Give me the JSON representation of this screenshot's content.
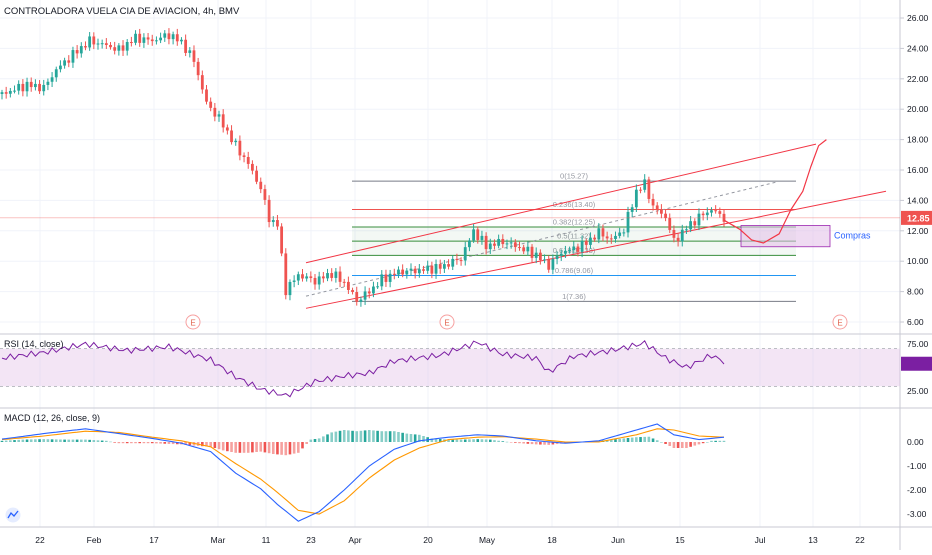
{
  "chart_data": {
    "type": "candlestick",
    "title": "CONTROLADORA VUELA CIA DE AVIACION, 4h, BMV",
    "colors": {
      "up": "#26a69a",
      "down": "#ef5350",
      "channel": "#f23645",
      "rsi_line": "#7b1fa2",
      "rsi_band": "#e1bee7",
      "macd_line": "#2962ff",
      "signal_line": "#ff9800",
      "fib_green": "#388e3c",
      "fib_blue": "#2196f3",
      "fib_gray": "#787b86",
      "zone_fill": "#e1bee7",
      "zone_border": "#9c27b0"
    },
    "x_axis_labels": [
      "22",
      "Feb",
      "17",
      "Mar",
      "11",
      "23",
      "Apr",
      "20",
      "May",
      "18",
      "Jun",
      "15",
      "Jul",
      "13",
      "22"
    ],
    "price_axis": {
      "ticks": [
        "26.00",
        "24.00",
        "22.00",
        "20.00",
        "18.00",
        "16.00",
        "14.00",
        "12.00",
        "10.00",
        "8.00",
        "6.00"
      ],
      "last_price": "12.85",
      "range": [
        5.5,
        26.9
      ],
      "scale": "linear"
    },
    "price_series": [
      {
        "bar": 0,
        "close": 21.0
      },
      {
        "bar": 12,
        "close": 21.6
      },
      {
        "bar": 20,
        "close": 21.4
      },
      {
        "bar": 26,
        "close": 22.6
      },
      {
        "bar": 34,
        "close": 23.6
      },
      {
        "bar": 42,
        "close": 24.5
      },
      {
        "bar": 50,
        "close": 24.2
      },
      {
        "bar": 56,
        "close": 23.9
      },
      {
        "bar": 64,
        "close": 24.7
      },
      {
        "bar": 72,
        "close": 24.5
      },
      {
        "bar": 80,
        "close": 24.9
      },
      {
        "bar": 86,
        "close": 24.4
      },
      {
        "bar": 92,
        "close": 23.2
      },
      {
        "bar": 98,
        "close": 20.4
      },
      {
        "bar": 104,
        "close": 19.4
      },
      {
        "bar": 112,
        "close": 17.6
      },
      {
        "bar": 118,
        "close": 16.4
      },
      {
        "bar": 124,
        "close": 14.8
      },
      {
        "bar": 128,
        "close": 12.8
      },
      {
        "bar": 132,
        "close": 12.4
      },
      {
        "bar": 136,
        "close": 8.1
      },
      {
        "bar": 142,
        "close": 9.1
      },
      {
        "bar": 150,
        "close": 8.7
      },
      {
        "bar": 158,
        "close": 9.2
      },
      {
        "bar": 164,
        "close": 8.6
      },
      {
        "bar": 170,
        "close": 7.4
      },
      {
        "bar": 176,
        "close": 8.0
      },
      {
        "bar": 182,
        "close": 8.8
      },
      {
        "bar": 190,
        "close": 9.3
      },
      {
        "bar": 200,
        "close": 9.4
      },
      {
        "bar": 210,
        "close": 9.6
      },
      {
        "bar": 220,
        "close": 10.2
      },
      {
        "bar": 226,
        "close": 12.0
      },
      {
        "bar": 232,
        "close": 11.0
      },
      {
        "bar": 240,
        "close": 11.3
      },
      {
        "bar": 248,
        "close": 10.9
      },
      {
        "bar": 256,
        "close": 10.4
      },
      {
        "bar": 262,
        "close": 9.7
      },
      {
        "bar": 268,
        "close": 10.6
      },
      {
        "bar": 274,
        "close": 10.8
      },
      {
        "bar": 280,
        "close": 11.2
      },
      {
        "bar": 286,
        "close": 11.9
      },
      {
        "bar": 292,
        "close": 11.4
      },
      {
        "bar": 298,
        "close": 12.1
      },
      {
        "bar": 304,
        "close": 14.6
      },
      {
        "bar": 308,
        "close": 15.1
      },
      {
        "bar": 312,
        "close": 13.6
      },
      {
        "bar": 318,
        "close": 12.9
      },
      {
        "bar": 322,
        "close": 11.3
      },
      {
        "bar": 328,
        "close": 12.2
      },
      {
        "bar": 334,
        "close": 12.9
      },
      {
        "bar": 340,
        "close": 13.4
      },
      {
        "bar": 346,
        "close": 12.85
      }
    ],
    "fibonacci_levels": [
      {
        "label": "0(15.27)",
        "value": 15.27
      },
      {
        "label": "0.236(13.40)",
        "value": 13.4
      },
      {
        "label": "0.382(12.25)",
        "value": 12.25
      },
      {
        "label": "0.5(11.32)",
        "value": 11.32
      },
      {
        "label": "0.618(10.38)",
        "value": 10.38
      },
      {
        "label": "0.786(9.06)",
        "value": 9.06
      },
      {
        "label": "1(7.36)",
        "value": 7.36
      }
    ],
    "channel_lines": [
      {
        "name": "upper",
        "from": [
          20,
          9.9
        ],
        "to": [
          530,
          17.7
        ]
      },
      {
        "name": "lower",
        "from": [
          20,
          6.9
        ],
        "to": [
          600,
          14.6
        ]
      },
      {
        "name": "median-dashed",
        "from": [
          20,
          7.7
        ],
        "to": [
          490,
          15.2
        ]
      }
    ],
    "zone": {
      "label": "Compras",
      "price_top": 12.35,
      "price_bottom": 10.95
    },
    "projection_path": [
      [
        0,
        12.7
      ],
      [
        8,
        12.1
      ],
      [
        14,
        11.4
      ],
      [
        20,
        11.2
      ],
      [
        28,
        11.8
      ],
      [
        34,
        13.4
      ],
      [
        40,
        14.6
      ],
      [
        44,
        16.2
      ],
      [
        48,
        17.6
      ],
      [
        52,
        18.0
      ]
    ],
    "event_markers": [
      "E",
      "E",
      "E"
    ],
    "rsi": {
      "label": "RSI (14, close)",
      "ticks": [
        "75.00",
        "50.00",
        "25.00"
      ],
      "band": [
        30,
        70
      ],
      "range": [
        12,
        85
      ],
      "values": [
        [
          0,
          60
        ],
        [
          20,
          66
        ],
        [
          40,
          75
        ],
        [
          60,
          68
        ],
        [
          80,
          72
        ],
        [
          100,
          58
        ],
        [
          112,
          40
        ],
        [
          124,
          27
        ],
        [
          136,
          20
        ],
        [
          150,
          35
        ],
        [
          164,
          41
        ],
        [
          176,
          44
        ],
        [
          188,
          57
        ],
        [
          210,
          63
        ],
        [
          228,
          77
        ],
        [
          240,
          64
        ],
        [
          256,
          60
        ],
        [
          262,
          45
        ],
        [
          274,
          62
        ],
        [
          292,
          68
        ],
        [
          308,
          76
        ],
        [
          318,
          60
        ],
        [
          328,
          50
        ],
        [
          340,
          63
        ],
        [
          346,
          56
        ]
      ]
    },
    "macd": {
      "label": "MACD (12, 26, close, 9)",
      "ticks": [
        "0.00",
        "-1.00",
        "-2.00",
        "-3.00"
      ],
      "range": [
        -3.5,
        0.75
      ],
      "macd_line": [
        [
          0,
          0.12
        ],
        [
          20,
          0.35
        ],
        [
          40,
          0.55
        ],
        [
          56,
          0.35
        ],
        [
          72,
          0.15
        ],
        [
          86,
          -0.05
        ],
        [
          100,
          -0.4
        ],
        [
          112,
          -1.3
        ],
        [
          124,
          -1.95
        ],
        [
          132,
          -2.6
        ],
        [
          142,
          -3.3
        ],
        [
          152,
          -2.9
        ],
        [
          164,
          -2.0
        ],
        [
          176,
          -1.0
        ],
        [
          188,
          -0.3
        ],
        [
          200,
          0.05
        ],
        [
          214,
          0.2
        ],
        [
          228,
          0.3
        ],
        [
          240,
          0.25
        ],
        [
          256,
          0.05
        ],
        [
          270,
          -0.05
        ],
        [
          286,
          0.05
        ],
        [
          304,
          0.5
        ],
        [
          314,
          0.75
        ],
        [
          322,
          0.3
        ],
        [
          334,
          0.1
        ],
        [
          346,
          0.2
        ]
      ],
      "signal_line": [
        [
          0,
          0.1
        ],
        [
          20,
          0.25
        ],
        [
          40,
          0.45
        ],
        [
          56,
          0.4
        ],
        [
          72,
          0.2
        ],
        [
          86,
          0.05
        ],
        [
          100,
          -0.2
        ],
        [
          112,
          -0.9
        ],
        [
          124,
          -1.55
        ],
        [
          132,
          -2.1
        ],
        [
          142,
          -2.85
        ],
        [
          152,
          -3.0
        ],
        [
          164,
          -2.45
        ],
        [
          176,
          -1.5
        ],
        [
          188,
          -0.75
        ],
        [
          200,
          -0.25
        ],
        [
          214,
          0.1
        ],
        [
          228,
          0.2
        ],
        [
          240,
          0.22
        ],
        [
          256,
          0.12
        ],
        [
          270,
          0.0
        ],
        [
          286,
          0.0
        ],
        [
          304,
          0.3
        ],
        [
          314,
          0.55
        ],
        [
          322,
          0.5
        ],
        [
          334,
          0.25
        ],
        [
          346,
          0.2
        ]
      ],
      "histogram": [
        [
          0,
          0.05
        ],
        [
          10,
          0.1
        ],
        [
          20,
          0.12
        ],
        [
          30,
          0.1
        ],
        [
          40,
          0.1
        ],
        [
          50,
          0.05
        ],
        [
          56,
          -0.05
        ],
        [
          64,
          -0.05
        ],
        [
          72,
          -0.05
        ],
        [
          80,
          -0.08
        ],
        [
          86,
          -0.1
        ],
        [
          92,
          -0.15
        ],
        [
          100,
          -0.2
        ],
        [
          106,
          -0.35
        ],
        [
          112,
          -0.45
        ],
        [
          118,
          -0.45
        ],
        [
          124,
          -0.4
        ],
        [
          130,
          -0.5
        ],
        [
          136,
          -0.55
        ],
        [
          142,
          -0.45
        ],
        [
          148,
          0.1
        ],
        [
          152,
          0.15
        ],
        [
          158,
          0.4
        ],
        [
          164,
          0.5
        ],
        [
          170,
          0.45
        ],
        [
          176,
          0.5
        ],
        [
          182,
          0.45
        ],
        [
          188,
          0.45
        ],
        [
          194,
          0.35
        ],
        [
          200,
          0.3
        ],
        [
          206,
          0.15
        ],
        [
          214,
          0.1
        ],
        [
          220,
          0.1
        ],
        [
          228,
          0.12
        ],
        [
          234,
          0.1
        ],
        [
          240,
          0.03
        ],
        [
          248,
          -0.05
        ],
        [
          256,
          -0.1
        ],
        [
          262,
          -0.12
        ],
        [
          270,
          -0.05
        ],
        [
          278,
          0.02
        ],
        [
          286,
          0.05
        ],
        [
          292,
          0.1
        ],
        [
          298,
          0.15
        ],
        [
          304,
          0.2
        ],
        [
          310,
          0.22
        ],
        [
          316,
          0.0
        ],
        [
          322,
          -0.25
        ],
        [
          328,
          -0.25
        ],
        [
          334,
          -0.1
        ],
        [
          340,
          0.05
        ],
        [
          346,
          0.05
        ]
      ]
    }
  }
}
